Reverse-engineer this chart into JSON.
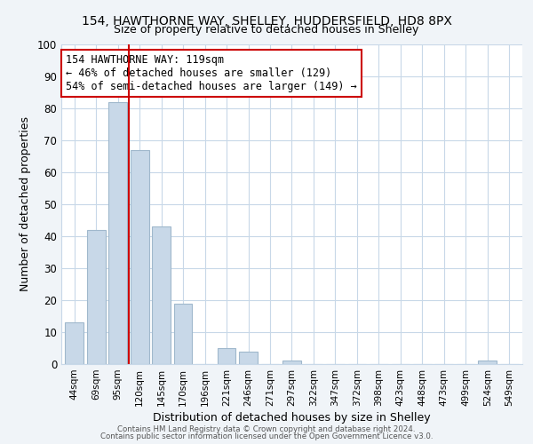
{
  "title": "154, HAWTHORNE WAY, SHELLEY, HUDDERSFIELD, HD8 8PX",
  "subtitle": "Size of property relative to detached houses in Shelley",
  "xlabel": "Distribution of detached houses by size in Shelley",
  "ylabel": "Number of detached properties",
  "bar_labels": [
    "44sqm",
    "69sqm",
    "95sqm",
    "120sqm",
    "145sqm",
    "170sqm",
    "196sqm",
    "221sqm",
    "246sqm",
    "271sqm",
    "297sqm",
    "322sqm",
    "347sqm",
    "372sqm",
    "398sqm",
    "423sqm",
    "448sqm",
    "473sqm",
    "499sqm",
    "524sqm",
    "549sqm"
  ],
  "bar_values": [
    13,
    42,
    82,
    67,
    43,
    19,
    0,
    5,
    4,
    0,
    1,
    0,
    0,
    0,
    0,
    0,
    0,
    0,
    0,
    1,
    0
  ],
  "bar_color": "#c8d8e8",
  "bar_edge_color": "#a0b8cc",
  "vline_x": 2.5,
  "vline_color": "#cc0000",
  "ylim": [
    0,
    100
  ],
  "yticks": [
    0,
    10,
    20,
    30,
    40,
    50,
    60,
    70,
    80,
    90,
    100
  ],
  "annotation_title": "154 HAWTHORNE WAY: 119sqm",
  "annotation_line1": "← 46% of detached houses are smaller (129)",
  "annotation_line2": "54% of semi-detached houses are larger (149) →",
  "annotation_box_color": "#ffffff",
  "annotation_border_color": "#cc0000",
  "footer_line1": "Contains HM Land Registry data © Crown copyright and database right 2024.",
  "footer_line2": "Contains public sector information licensed under the Open Government Licence v3.0.",
  "bg_color": "#f0f4f8",
  "plot_bg_color": "#ffffff",
  "grid_color": "#c8d8e8",
  "title_fontsize": 10,
  "subtitle_fontsize": 9
}
